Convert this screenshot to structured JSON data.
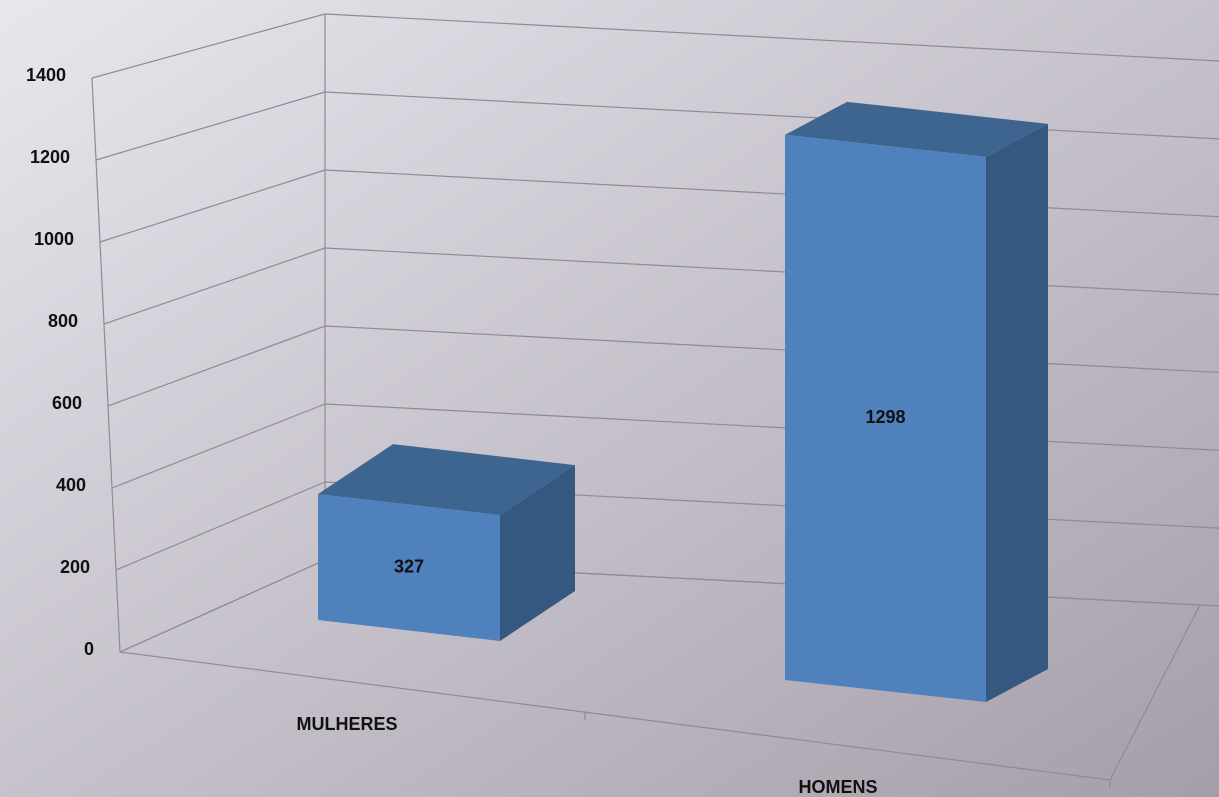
{
  "chart_data": {
    "type": "bar3d",
    "categories": [
      "MULHERES",
      "HOMENS"
    ],
    "values": [
      327,
      1298
    ],
    "color": "#4f81bd",
    "ylim": [
      0,
      1400
    ],
    "yticks": [
      0,
      200,
      400,
      600,
      800,
      1000,
      1200,
      1400
    ],
    "grid": true
  }
}
